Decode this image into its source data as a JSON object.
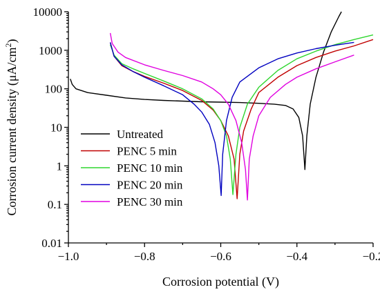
{
  "chart_data": {
    "type": "line",
    "xlabel": "Corrosion potential (V)",
    "ylabel_main": "Corrosion current density (μA/cm",
    "ylabel_sup": "2",
    "ylabel_close": ")",
    "xlim": [
      -1.0,
      -0.2
    ],
    "ylim": [
      0.01,
      10000
    ],
    "yscale": "log",
    "x_ticks": [
      -1.0,
      -0.8,
      -0.6,
      -0.4,
      -0.2
    ],
    "x_tick_labels": [
      "−1.0",
      "−0.8",
      "−0.6",
      "−0.4",
      "−0.2"
    ],
    "y_ticks": [
      0.01,
      0.1,
      1,
      10,
      100,
      1000,
      10000
    ],
    "y_tick_labels": [
      "0.01",
      "0.1",
      "1",
      "10",
      "100",
      "1000",
      "10000"
    ],
    "legend_position": "left-inside",
    "series": [
      {
        "name": "Untreated",
        "color": "#000000",
        "points": [
          [
            -0.995,
            180
          ],
          [
            -0.99,
            130
          ],
          [
            -0.98,
            100
          ],
          [
            -0.95,
            80
          ],
          [
            -0.9,
            68
          ],
          [
            -0.85,
            58
          ],
          [
            -0.8,
            53
          ],
          [
            -0.75,
            50
          ],
          [
            -0.7,
            48
          ],
          [
            -0.65,
            46
          ],
          [
            -0.6,
            45
          ],
          [
            -0.55,
            44
          ],
          [
            -0.5,
            42
          ],
          [
            -0.46,
            40
          ],
          [
            -0.43,
            37
          ],
          [
            -0.41,
            30
          ],
          [
            -0.395,
            18
          ],
          [
            -0.385,
            6
          ],
          [
            -0.379,
            0.8
          ],
          [
            -0.374,
            6
          ],
          [
            -0.365,
            40
          ],
          [
            -0.35,
            200
          ],
          [
            -0.33,
            900
          ],
          [
            -0.31,
            3000
          ],
          [
            -0.29,
            7500
          ],
          [
            -0.283,
            10000
          ]
        ]
      },
      {
        "name": "PENC 5 min",
        "color": "#c00000",
        "points": [
          [
            -0.89,
            1600
          ],
          [
            -0.88,
            700
          ],
          [
            -0.86,
            400
          ],
          [
            -0.83,
            280
          ],
          [
            -0.8,
            210
          ],
          [
            -0.75,
            140
          ],
          [
            -0.7,
            90
          ],
          [
            -0.65,
            50
          ],
          [
            -0.62,
            28
          ],
          [
            -0.6,
            15
          ],
          [
            -0.58,
            6
          ],
          [
            -0.565,
            1.5
          ],
          [
            -0.557,
            0.14
          ],
          [
            -0.55,
            2
          ],
          [
            -0.54,
            8
          ],
          [
            -0.52,
            30
          ],
          [
            -0.5,
            80
          ],
          [
            -0.45,
            200
          ],
          [
            -0.4,
            400
          ],
          [
            -0.35,
            650
          ],
          [
            -0.3,
            950
          ],
          [
            -0.25,
            1300
          ],
          [
            -0.2,
            1900
          ]
        ]
      },
      {
        "name": "PENC 10 min",
        "color": "#2ed62e",
        "points": [
          [
            -0.89,
            1400
          ],
          [
            -0.88,
            750
          ],
          [
            -0.86,
            450
          ],
          [
            -0.83,
            330
          ],
          [
            -0.8,
            250
          ],
          [
            -0.75,
            160
          ],
          [
            -0.7,
            100
          ],
          [
            -0.65,
            55
          ],
          [
            -0.62,
            30
          ],
          [
            -0.6,
            15
          ],
          [
            -0.585,
            6
          ],
          [
            -0.575,
            1.5
          ],
          [
            -0.568,
            0.18
          ],
          [
            -0.56,
            2
          ],
          [
            -0.55,
            10
          ],
          [
            -0.53,
            40
          ],
          [
            -0.5,
            110
          ],
          [
            -0.45,
            300
          ],
          [
            -0.4,
            600
          ],
          [
            -0.35,
            950
          ],
          [
            -0.3,
            1400
          ],
          [
            -0.25,
            1900
          ],
          [
            -0.2,
            2500
          ]
        ]
      },
      {
        "name": "PENC 20 min",
        "color": "#0000c0",
        "points": [
          [
            -0.89,
            1600
          ],
          [
            -0.88,
            700
          ],
          [
            -0.86,
            420
          ],
          [
            -0.83,
            280
          ],
          [
            -0.8,
            200
          ],
          [
            -0.75,
            120
          ],
          [
            -0.7,
            70
          ],
          [
            -0.67,
            40
          ],
          [
            -0.65,
            25
          ],
          [
            -0.63,
            12
          ],
          [
            -0.615,
            4
          ],
          [
            -0.605,
            1
          ],
          [
            -0.599,
            0.17
          ],
          [
            -0.595,
            2
          ],
          [
            -0.585,
            15
          ],
          [
            -0.57,
            60
          ],
          [
            -0.55,
            150
          ],
          [
            -0.5,
            350
          ],
          [
            -0.45,
            600
          ],
          [
            -0.4,
            850
          ],
          [
            -0.35,
            1100
          ],
          [
            -0.3,
            1350
          ],
          [
            -0.25,
            1600
          ]
        ]
      },
      {
        "name": "PENC 30 min",
        "color": "#e000e0",
        "points": [
          [
            -0.89,
            2800
          ],
          [
            -0.885,
            1500
          ],
          [
            -0.87,
            900
          ],
          [
            -0.85,
            650
          ],
          [
            -0.8,
            420
          ],
          [
            -0.75,
            300
          ],
          [
            -0.7,
            220
          ],
          [
            -0.65,
            150
          ],
          [
            -0.62,
            100
          ],
          [
            -0.6,
            70
          ],
          [
            -0.58,
            40
          ],
          [
            -0.56,
            15
          ],
          [
            -0.545,
            4
          ],
          [
            -0.535,
            0.8
          ],
          [
            -0.53,
            0.13
          ],
          [
            -0.525,
            1.5
          ],
          [
            -0.515,
            6
          ],
          [
            -0.5,
            20
          ],
          [
            -0.47,
            60
          ],
          [
            -0.43,
            130
          ],
          [
            -0.4,
            200
          ],
          [
            -0.35,
            330
          ],
          [
            -0.3,
            500
          ],
          [
            -0.25,
            750
          ]
        ]
      }
    ]
  }
}
